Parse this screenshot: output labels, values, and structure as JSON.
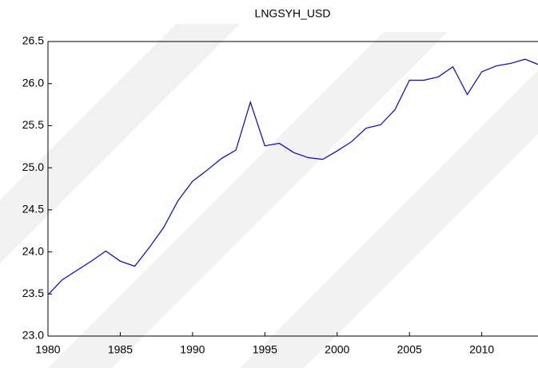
{
  "chart_data": {
    "type": "line",
    "title": "LNGSYH_USD",
    "x": [
      1980,
      1981,
      1982,
      1983,
      1984,
      1985,
      1986,
      1987,
      1988,
      1989,
      1990,
      1991,
      1992,
      1993,
      1994,
      1995,
      1996,
      1997,
      1998,
      1999,
      2000,
      2001,
      2002,
      2003,
      2004,
      2005,
      2006,
      2007,
      2008,
      2009,
      2010,
      2011,
      2012,
      2013,
      2014
    ],
    "series": [
      {
        "name": "LNGSYH_USD",
        "color": "#0000ff",
        "values": [
          23.49,
          23.67,
          23.78,
          23.89,
          24.01,
          23.89,
          23.83,
          24.05,
          24.29,
          24.61,
          24.84,
          24.97,
          25.11,
          25.21,
          25.78,
          25.26,
          25.29,
          25.18,
          25.12,
          25.1,
          25.2,
          25.31,
          25.47,
          25.51,
          25.69,
          26.04,
          26.04,
          26.08,
          26.2,
          25.87,
          26.14,
          26.21,
          26.24,
          26.29,
          26.22
        ]
      }
    ],
    "xlim": [
      1980,
      2014
    ],
    "xticks": [
      1980,
      1985,
      1990,
      1995,
      2000,
      2005,
      2010
    ],
    "ylim": [
      23.0,
      26.5
    ],
    "yticks": [
      {
        "value": 23.0,
        "label": "23.0"
      },
      23.5,
      {
        "value": 24.0,
        "label": "24.0"
      },
      24.5,
      {
        "value": 25.0,
        "label": "25.0"
      },
      25.5,
      {
        "value": 26.0,
        "label": "26.0"
      },
      26.5
    ],
    "grid": false
  }
}
